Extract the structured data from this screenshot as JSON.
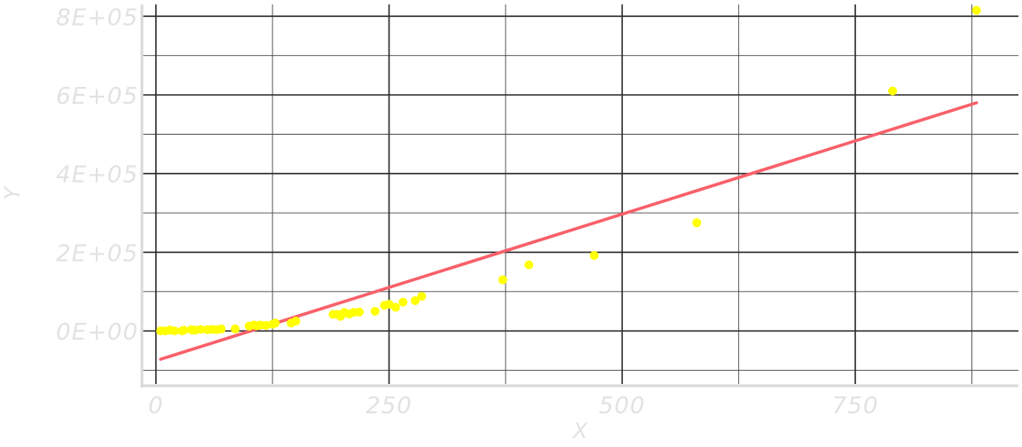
{
  "chart_data": {
    "type": "scatter",
    "title": "",
    "xlabel": "X",
    "ylabel": "Y",
    "xlim": [
      -15,
      925
    ],
    "ylim": [
      -135000,
      830000
    ],
    "x_ticks": [
      0,
      250,
      500,
      750
    ],
    "x_tick_labels": [
      "0",
      "250",
      "500",
      "750"
    ],
    "y_ticks": [
      0,
      200000,
      400000,
      600000,
      800000
    ],
    "y_tick_labels": [
      "0E+00",
      "2E+05",
      "4E+05",
      "6E+05",
      "8E+05"
    ],
    "grid": true,
    "legend": "none",
    "colors": {
      "points": "#ffff00",
      "fit_line": "#f8606a",
      "grid": "#2a2a2a",
      "axis": "#d9d9d9"
    },
    "series": [
      {
        "kind": "points",
        "x": [
          5,
          10,
          15,
          20,
          28,
          30,
          38,
          42,
          48,
          55,
          60,
          65,
          70,
          85,
          100,
          105,
          108,
          112,
          118,
          125,
          128,
          145,
          150,
          190,
          195,
          198,
          202,
          207,
          212,
          218,
          235,
          245,
          250,
          257,
          265,
          278,
          285,
          372,
          400,
          470,
          580,
          790,
          880
        ],
        "y": [
          0,
          0,
          2000,
          0,
          0,
          2000,
          3000,
          2000,
          4000,
          3000,
          4000,
          3000,
          5000,
          5000,
          12000,
          15000,
          13000,
          15000,
          14000,
          17000,
          20000,
          20000,
          25000,
          42000,
          42000,
          37000,
          47000,
          43000,
          47000,
          48000,
          50000,
          65000,
          68000,
          60000,
          73000,
          77000,
          88000,
          130000,
          168000,
          192000,
          275000,
          610000,
          815000
        ]
      },
      {
        "kind": "fit_line",
        "x": [
          5,
          880
        ],
        "y": [
          -72000,
          580000
        ]
      }
    ]
  }
}
